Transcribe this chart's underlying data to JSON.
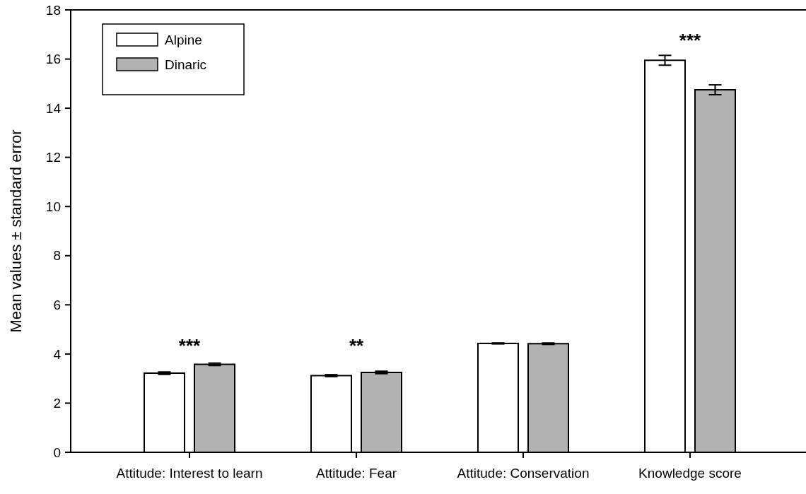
{
  "chart_data": {
    "type": "bar",
    "ylabel": "Mean values ± standard error",
    "categories": [
      "Attitude: Interest to learn",
      "Attitude: Fear",
      "Attitude: Conservation",
      "Knowledge score"
    ],
    "series": [
      {
        "name": "Alpine",
        "color": "#ffffff",
        "values": [
          3.22,
          3.12,
          4.43,
          15.95
        ],
        "errors": [
          0.05,
          0.04,
          0.02,
          0.2
        ]
      },
      {
        "name": "Dinaric",
        "color": "#b2b2b2",
        "values": [
          3.58,
          3.25,
          4.42,
          14.75
        ],
        "errors": [
          0.05,
          0.05,
          0.03,
          0.2
        ]
      }
    ],
    "ylim": [
      0,
      18
    ],
    "yticks": [
      0,
      2,
      4,
      6,
      8,
      10,
      12,
      14,
      16,
      18
    ],
    "grid": false,
    "legend": "top left",
    "annotations": [
      "***",
      "**",
      "***"
    ]
  }
}
